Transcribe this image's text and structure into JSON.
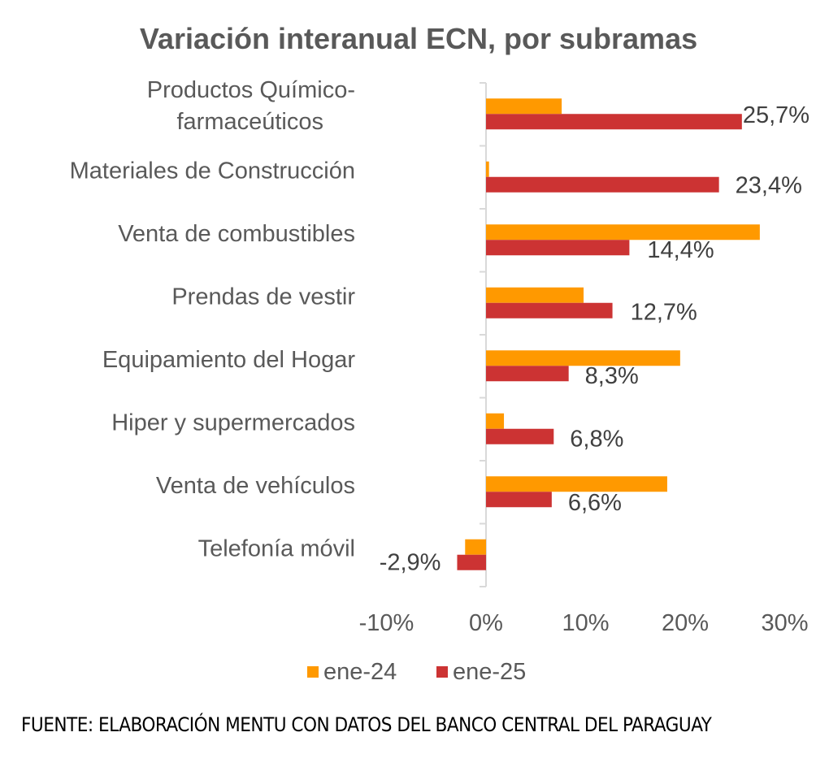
{
  "chart_data": {
    "type": "bar",
    "orientation": "horizontal",
    "title": "Variación interanual ECN, por subramas",
    "categories": [
      [
        "Productos Químico-",
        "farmaceúticos"
      ],
      [
        "Materiales de Construcción"
      ],
      [
        "Venta de combustibles"
      ],
      [
        "Prendas de vestir"
      ],
      [
        "Equipamiento del Hogar"
      ],
      [
        "Hiper y supermercados"
      ],
      [
        "Venta de vehículos"
      ],
      [
        "Telefonía móvil"
      ]
    ],
    "series": [
      {
        "name": "ene-24",
        "color": "#FF9900",
        "values": [
          7.6,
          0.3,
          27.5,
          9.8,
          19.5,
          1.8,
          18.2,
          -2.1
        ],
        "labels": null
      },
      {
        "name": "ene-25",
        "color": "#CC3333",
        "values": [
          25.7,
          23.4,
          14.4,
          12.7,
          8.3,
          6.8,
          6.6,
          -2.9
        ],
        "labels": [
          "25,7%",
          "23,4%",
          "14,4%",
          "12,7%",
          "8,3%",
          "6,8%",
          "6,6%",
          "-2,9%"
        ]
      }
    ],
    "xlim": [
      -10,
      30
    ],
    "xticks": [
      -10,
      0,
      10,
      20,
      30
    ],
    "xtick_labels": [
      "-10%",
      "0%",
      "10%",
      "20%",
      "30%"
    ],
    "xlabel": "",
    "ylabel": "",
    "grid": false,
    "legend": "bottom"
  },
  "source": "FUENTE: ELABORACIÓN MENTU CON DATOS DEL BANCO CENTRAL DEL PARAGUAY"
}
